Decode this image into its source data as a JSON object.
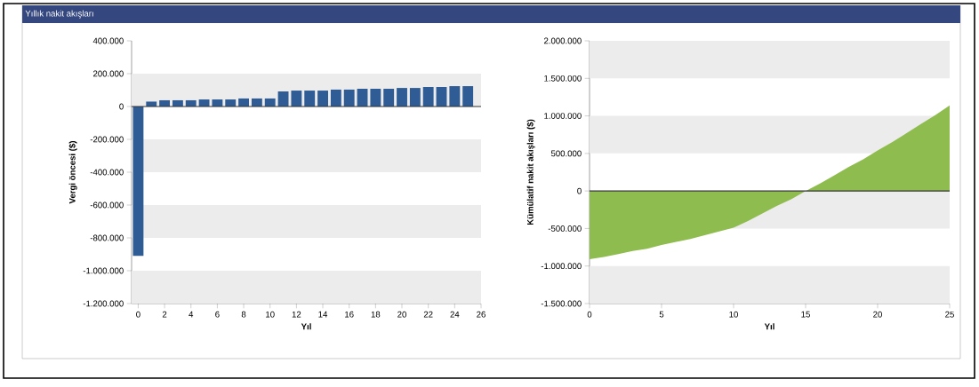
{
  "chart_data": [
    {
      "type": "bar",
      "title": "Yıllık nakit akışları",
      "xlabel": "Yıl",
      "ylabel": "Vergi öncesi ($)",
      "color": "#2f5c94",
      "x": [
        0,
        1,
        2,
        3,
        4,
        5,
        6,
        7,
        8,
        9,
        10,
        11,
        12,
        13,
        14,
        15,
        16,
        17,
        18,
        19,
        20,
        21,
        22,
        23,
        24,
        25
      ],
      "values": [
        -910000,
        30000,
        38000,
        38000,
        38000,
        43000,
        43000,
        43000,
        49000,
        49000,
        49000,
        92000,
        97000,
        97000,
        97000,
        103000,
        103000,
        108000,
        108000,
        108000,
        113000,
        113000,
        119000,
        119000,
        124000,
        124000
      ],
      "xlim": [
        -0.5,
        26
      ],
      "ylim": [
        -1200000,
        400000
      ],
      "xticks": [
        0,
        2,
        4,
        6,
        8,
        10,
        12,
        14,
        16,
        18,
        20,
        22,
        24,
        26
      ],
      "yticks": [
        {
          "value": -1200000,
          "label": "-1.200.000"
        },
        {
          "value": -1000000,
          "label": "-1.000.000"
        },
        {
          "value": -800000,
          "label": "-800.000"
        },
        {
          "value": -600000,
          "label": "-600.000"
        },
        {
          "value": -400000,
          "label": "-400.000"
        },
        {
          "value": -200000,
          "label": "-200.000"
        },
        {
          "value": 0,
          "label": "0"
        },
        {
          "value": 200000,
          "label": "200.000"
        },
        {
          "value": 400000,
          "label": "400.000"
        }
      ],
      "bands": [
        {
          "axis": "y",
          "from": 0,
          "to": 200000,
          "color": "#ececec"
        },
        {
          "axis": "y",
          "from": -400000,
          "to": -200000,
          "color": "#ececec"
        },
        {
          "axis": "y",
          "from": -800000,
          "to": -600000,
          "color": "#ececec"
        },
        {
          "axis": "y",
          "from": -1200000,
          "to": -1000000,
          "color": "#ececec"
        }
      ],
      "ref_lines": [
        {
          "axis": "y",
          "value": 0,
          "color": "#333333"
        }
      ]
    },
    {
      "type": "area",
      "xlabel": "Yıl",
      "ylabel": "Kümülatif nakit akışları ($)",
      "color": "#8fbc4f",
      "x": [
        0,
        1,
        2,
        3,
        4,
        5,
        6,
        7,
        8,
        9,
        10,
        11,
        12,
        13,
        14,
        15,
        16,
        17,
        18,
        19,
        20,
        21,
        22,
        23,
        24,
        25
      ],
      "values": [
        -910000,
        -880000,
        -840000,
        -800000,
        -770000,
        -720000,
        -680000,
        -640000,
        -590000,
        -540000,
        -490000,
        -400000,
        -300000,
        -200000,
        -110000,
        0,
        100000,
        210000,
        320000,
        420000,
        540000,
        650000,
        770000,
        890000,
        1010000,
        1140000
      ],
      "xlim": [
        0,
        25
      ],
      "ylim": [
        -1500000,
        2000000
      ],
      "xticks": [
        0,
        5,
        10,
        15,
        20,
        25
      ],
      "yticks": [
        {
          "value": -1500000,
          "label": "-1.500.000"
        },
        {
          "value": -1000000,
          "label": "-1.000.000"
        },
        {
          "value": -500000,
          "label": "-500.000"
        },
        {
          "value": 0,
          "label": "0"
        },
        {
          "value": 500000,
          "label": "500.000"
        },
        {
          "value": 1000000,
          "label": "1.000.000"
        },
        {
          "value": 1500000,
          "label": "1.500.000"
        },
        {
          "value": 2000000,
          "label": "2.000.000"
        }
      ],
      "bands": [
        {
          "axis": "y",
          "from": 1500000,
          "to": 2000000,
          "color": "#ececec"
        },
        {
          "axis": "y",
          "from": 500000,
          "to": 1000000,
          "color": "#ececec"
        },
        {
          "axis": "y",
          "from": -500000,
          "to": 0,
          "color": "#ececec"
        },
        {
          "axis": "y",
          "from": -1500000,
          "to": -1000000,
          "color": "#ececec"
        }
      ],
      "ref_lines": [
        {
          "axis": "y",
          "value": 0,
          "color": "#333333"
        }
      ]
    }
  ]
}
